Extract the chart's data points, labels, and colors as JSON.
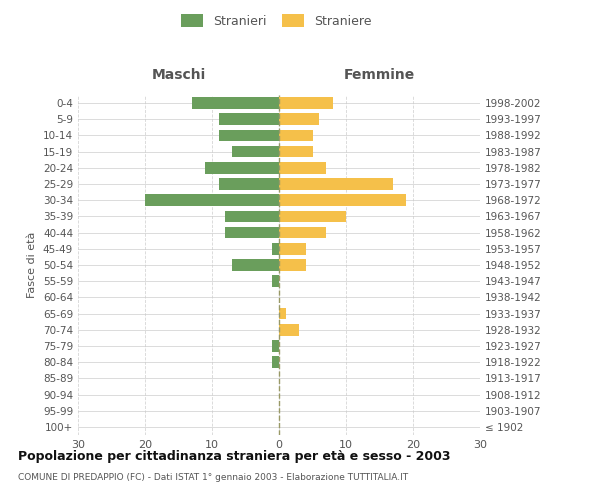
{
  "age_groups": [
    "100+",
    "95-99",
    "90-94",
    "85-89",
    "80-84",
    "75-79",
    "70-74",
    "65-69",
    "60-64",
    "55-59",
    "50-54",
    "45-49",
    "40-44",
    "35-39",
    "30-34",
    "25-29",
    "20-24",
    "15-19",
    "10-14",
    "5-9",
    "0-4"
  ],
  "birth_years": [
    "≤ 1902",
    "1903-1907",
    "1908-1912",
    "1913-1917",
    "1918-1922",
    "1923-1927",
    "1928-1932",
    "1933-1937",
    "1938-1942",
    "1943-1947",
    "1948-1952",
    "1953-1957",
    "1958-1962",
    "1963-1967",
    "1968-1972",
    "1973-1977",
    "1978-1982",
    "1983-1987",
    "1988-1992",
    "1993-1997",
    "1998-2002"
  ],
  "males": [
    0,
    0,
    0,
    0,
    1,
    1,
    0,
    0,
    0,
    1,
    7,
    1,
    8,
    8,
    20,
    9,
    11,
    7,
    9,
    9,
    13
  ],
  "females": [
    0,
    0,
    0,
    0,
    0,
    0,
    3,
    1,
    0,
    0,
    4,
    4,
    7,
    10,
    19,
    17,
    7,
    5,
    5,
    6,
    8
  ],
  "male_color": "#6a9e5c",
  "female_color": "#f5c04a",
  "title": "Popolazione per cittadinanza straniera per età e sesso - 2003",
  "subtitle": "COMUNE DI PREDAPPIO (FC) - Dati ISTAT 1° gennaio 2003 - Elaborazione TUTTITALIA.IT",
  "header_left": "Maschi",
  "header_right": "Femmine",
  "ylabel_left": "Fasce di età",
  "xlim": 30,
  "legend_stranieri": "Stranieri",
  "legend_straniere": "Straniere",
  "background_color": "#ffffff",
  "grid_color": "#cccccc",
  "dashed_line_color": "#999966",
  "text_color": "#555555",
  "title_color": "#111111"
}
